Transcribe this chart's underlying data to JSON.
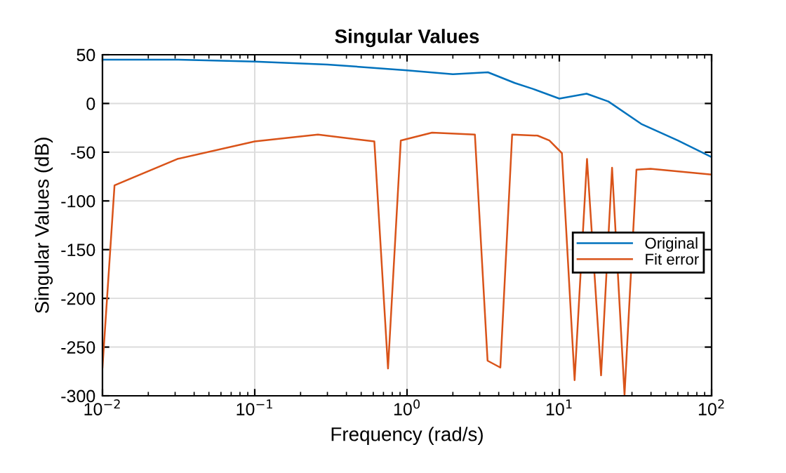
{
  "chart_data": {
    "type": "line",
    "title": "Singular Values",
    "xlabel": "Frequency (rad/s)",
    "ylabel": "Singular Values (dB)",
    "log": "x",
    "xlim": [
      0.01,
      100
    ],
    "ylim": [
      -300,
      50
    ],
    "xticks": [
      {
        "value": 0.01,
        "label": "10$^{−2}$"
      },
      {
        "value": 0.1,
        "label": "10$^{−1}$"
      },
      {
        "value": 1,
        "label": "10$^{0}$"
      },
      {
        "value": 10,
        "label": "10$^{1}$"
      },
      {
        "value": 100,
        "label": "10$^{2}$"
      }
    ],
    "yticks": [
      -300,
      -250,
      -200,
      -150,
      -100,
      -50,
      0,
      50
    ],
    "grid": true,
    "legend": "right",
    "line_style": "solid",
    "marker": "none",
    "series": [
      {
        "name": "Original",
        "color": "#0072bd",
        "x": [
          0.01,
          0.03,
          0.1,
          0.3,
          1,
          2,
          3.4,
          5.1,
          6.7,
          10,
          15.1,
          21,
          34.5,
          60,
          100
        ],
        "values": [
          45,
          45,
          43,
          40,
          34,
          30,
          32,
          21,
          15,
          5,
          10,
          2,
          -21,
          -38,
          -55
        ]
      },
      {
        "name": "Fit error",
        "color": "#d95319",
        "x": [
          0.01,
          0.012,
          0.031,
          0.1,
          0.26,
          0.61,
          0.75,
          0.91,
          1.46,
          2.79,
          3.38,
          4.1,
          4.9,
          7.2,
          8.6,
          10.4,
          12.6,
          15.2,
          18.8,
          22.2,
          26.8,
          32.1,
          39.7,
          100
        ],
        "values": [
          -271,
          -84,
          -57,
          -39,
          -32,
          -39,
          -272,
          -38,
          -30,
          -32,
          -264,
          -271,
          -32,
          -33,
          -38,
          -51,
          -284,
          -57,
          -279,
          -66,
          -299,
          -68,
          -67,
          -73
        ]
      }
    ]
  }
}
